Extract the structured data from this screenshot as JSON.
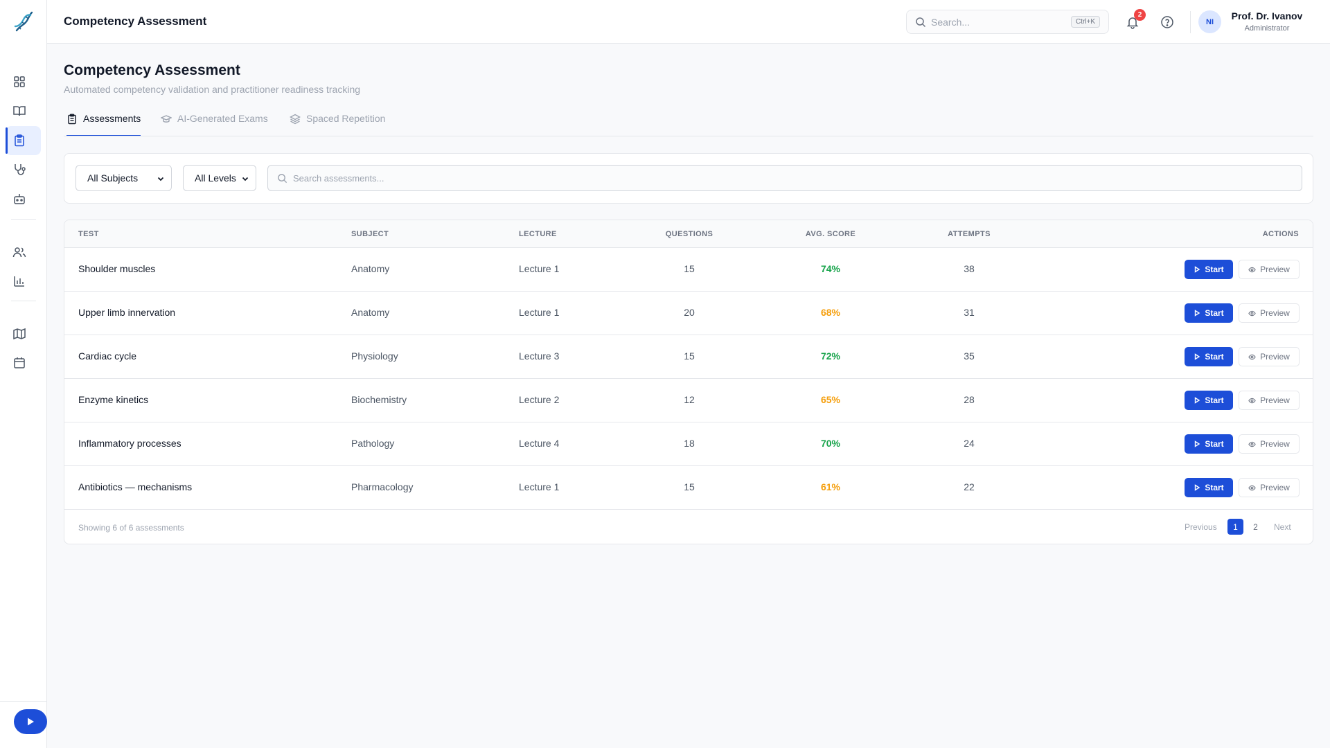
{
  "header": {
    "title": "Competency Assessment",
    "search_placeholder": "Search...",
    "search_shortcut": "Ctrl+K",
    "notifications_count": "2",
    "user": {
      "initials": "NI",
      "name": "Prof. Dr. Ivanov",
      "role": "Administrator"
    }
  },
  "sidebar": {
    "items": [
      {
        "icon": "dashboard-icon"
      },
      {
        "icon": "book-icon"
      },
      {
        "icon": "clipboard-icon",
        "active": true
      },
      {
        "icon": "stethoscope-icon"
      },
      {
        "icon": "robot-icon"
      },
      {
        "icon": "users-icon"
      },
      {
        "icon": "bar-chart-icon"
      },
      {
        "icon": "map-icon"
      },
      {
        "icon": "calendar-icon"
      }
    ],
    "fab_icon": "play-icon"
  },
  "page": {
    "title": "Competency Assessment",
    "subtitle": "Automated competency validation and practitioner readiness tracking"
  },
  "tabs": [
    {
      "label": "Assessments",
      "icon": "clipboard-icon",
      "active": true
    },
    {
      "label": "AI-Generated Exams",
      "icon": "graduation-cap-icon",
      "active": false
    },
    {
      "label": "Spaced Repetition",
      "icon": "layers-icon",
      "active": false
    }
  ],
  "filters": {
    "subject": "All Subjects",
    "level": "All Levels",
    "search_placeholder": "Search assessments..."
  },
  "table": {
    "columns": [
      "TEST",
      "SUBJECT",
      "LECTURE",
      "QUESTIONS",
      "AVG. SCORE",
      "ATTEMPTS",
      "ACTIONS"
    ],
    "start_label": "Start",
    "preview_label": "Preview",
    "rows": [
      {
        "test": "Shoulder muscles",
        "subject": "Anatomy",
        "lecture": "Lecture 1",
        "questions": "15",
        "score": "74%",
        "score_color": "#16a34a",
        "attempts": "38"
      },
      {
        "test": "Upper limb innervation",
        "subject": "Anatomy",
        "lecture": "Lecture 1",
        "questions": "20",
        "score": "68%",
        "score_color": "#f59e0b",
        "attempts": "31"
      },
      {
        "test": "Cardiac cycle",
        "subject": "Physiology",
        "lecture": "Lecture 3",
        "questions": "15",
        "score": "72%",
        "score_color": "#16a34a",
        "attempts": "35"
      },
      {
        "test": "Enzyme kinetics",
        "subject": "Biochemistry",
        "lecture": "Lecture 2",
        "questions": "12",
        "score": "65%",
        "score_color": "#f59e0b",
        "attempts": "28"
      },
      {
        "test": "Inflammatory processes",
        "subject": "Pathology",
        "lecture": "Lecture 4",
        "questions": "18",
        "score": "70%",
        "score_color": "#16a34a",
        "attempts": "24"
      },
      {
        "test": "Antibiotics — mechanisms",
        "subject": "Pharmacology",
        "lecture": "Lecture 1",
        "questions": "15",
        "score": "61%",
        "score_color": "#f59e0b",
        "attempts": "22"
      }
    ],
    "footer": {
      "showing": "Showing 6 of 6 assessments",
      "previous": "Previous",
      "pages": [
        "1",
        "2"
      ],
      "current_page": "1",
      "next": "Next"
    }
  },
  "colors": {
    "accent": "#1d4ed8",
    "good": "#16a34a",
    "warn": "#f59e0b",
    "badge": "#ef4444"
  }
}
